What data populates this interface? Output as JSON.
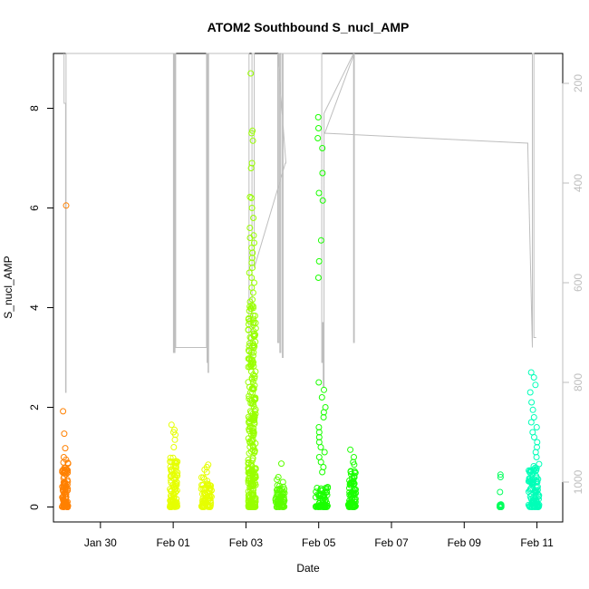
{
  "chart_data": {
    "type": "scatter",
    "title": "ATOM2 Southbound S_nucl_AMP",
    "xlabel": "Date",
    "ylabel": "S_nucl_AMP",
    "x_axis": {
      "kind": "date",
      "range": [
        "2015-01-28T17:00",
        "2015-02-11T17:00"
      ],
      "ticks": [
        {
          "label": "Jan 30",
          "date": "2015-01-30"
        },
        {
          "label": "Feb 01",
          "date": "2015-02-01"
        },
        {
          "label": "Feb 03",
          "date": "2015-02-03"
        },
        {
          "label": "Feb 05",
          "date": "2015-02-05"
        },
        {
          "label": "Feb 07",
          "date": "2015-02-07"
        },
        {
          "label": "Feb 09",
          "date": "2015-02-09"
        },
        {
          "label": "Feb 11",
          "date": "2015-02-11"
        }
      ]
    },
    "y_axis": {
      "range": [
        -0.3,
        9.1
      ],
      "ticks": [
        {
          "label": "0",
          "value": 0
        },
        {
          "label": "2",
          "value": 2
        },
        {
          "label": "4",
          "value": 4
        },
        {
          "label": "6",
          "value": 6
        },
        {
          "label": "8",
          "value": 8
        }
      ]
    },
    "y2_axis": {
      "reversed": true,
      "color": "#bebebe",
      "range": [
        1080,
        140
      ],
      "ticks": [
        {
          "label": "200",
          "value": 200
        },
        {
          "label": "400",
          "value": 400
        },
        {
          "label": "600",
          "value": 600
        },
        {
          "label": "800",
          "value": 800
        },
        {
          "label": "1000",
          "value": 1000
        }
      ]
    },
    "grid": false,
    "legend": "none",
    "colors": {
      "orange": "#ff8000",
      "yellow": "#e6ff00",
      "chartreuse": "#99ff00",
      "lime": "#5cff00",
      "green": "#1aff00",
      "spring": "#00ff5c",
      "aqua": "#00ffb8",
      "line": "#bebebe"
    },
    "clusters": [
      {
        "date": "2015-01-29T00:40",
        "width_h": 4,
        "color": "orange",
        "bulk_max": 0.9,
        "outliers": [
          6.05,
          1.92,
          1.47,
          1.18,
          1.0,
          0.95
        ]
      },
      {
        "date": "2015-02-01T00:20",
        "width_h": 5,
        "color": "yellow",
        "bulk_max": 1.0,
        "outliers": [
          1.65,
          1.55,
          1.5,
          1.45,
          1.35,
          1.2
        ]
      },
      {
        "date": "2015-02-01T22:00",
        "width_h": 7,
        "color": "yellow",
        "bulk_max": 0.6,
        "outliers": [
          0.85,
          0.8,
          0.75,
          0.7
        ]
      },
      {
        "date": "2015-02-03T04:00",
        "width_h": 5,
        "color": "chartreuse",
        "bulk_max": 4.2,
        "outliers": [
          8.7,
          7.55,
          7.5,
          7.35,
          6.9,
          6.8,
          6.22,
          6.2,
          6.0,
          5.8,
          5.6,
          5.45,
          5.4,
          5.3,
          5.2,
          5.1,
          5.0,
          4.9,
          4.8,
          4.7,
          4.6,
          4.5,
          4.4,
          4.3
        ]
      },
      {
        "date": "2015-02-03T22:30",
        "width_h": 6,
        "color": "lime",
        "bulk_max": 0.45,
        "outliers": [
          0.87,
          0.6,
          0.55,
          0.5
        ]
      },
      {
        "date": "2015-02-05T02:00",
        "width_h": 8,
        "color": "green",
        "bulk_max": 0.4,
        "outliers": [
          7.82,
          7.6,
          7.4,
          7.2,
          6.7,
          6.3,
          6.15,
          5.35,
          4.93,
          4.6,
          2.5,
          2.35,
          2.2,
          2.0,
          1.9,
          1.8,
          1.6,
          1.5,
          1.4,
          1.3,
          1.2,
          1.1,
          1.0,
          0.9,
          0.8,
          0.7
        ]
      },
      {
        "date": "2015-02-05T22:00",
        "width_h": 5,
        "color": "green",
        "bulk_max": 0.75,
        "outliers": [
          1.15,
          1.0,
          0.9,
          0.85
        ]
      },
      {
        "date": "2015-02-10T00:00",
        "width_h": 1,
        "color": "spring",
        "bulk_max": 0.05,
        "outliers": [
          0.65,
          0.6,
          0.3
        ]
      },
      {
        "date": "2015-02-10T22:00",
        "width_h": 7,
        "color": "aqua",
        "bulk_max": 0.9,
        "outliers": [
          2.7,
          2.6,
          2.45,
          2.3,
          2.1,
          1.95,
          1.8,
          1.7,
          1.6,
          1.5,
          1.4,
          1.3,
          1.2,
          1.1,
          1.0
        ]
      }
    ],
    "secondary_series": {
      "name": "",
      "axis": "right",
      "color": "line",
      "points": [
        [
          "2015-01-29T00:00",
          140
        ],
        [
          "2015-01-29T00:00",
          240
        ],
        [
          "2015-01-29T01:00",
          240
        ],
        [
          "2015-01-29T01:00",
          820
        ],
        [
          "2015-01-29T01:20",
          820
        ],
        [
          "2015-01-29T01:20",
          140
        ],
        [
          "2015-02-01T00:10",
          140
        ],
        [
          "2015-02-01T00:10",
          740
        ],
        [
          "2015-02-01T00:30",
          740
        ],
        [
          "2015-02-01T00:30",
          140
        ],
        [
          "2015-02-01T00:40",
          140
        ],
        [
          "2015-02-01T00:40",
          740
        ],
        [
          "2015-02-01T01:10",
          740
        ],
        [
          "2015-02-01T01:10",
          140
        ],
        [
          "2015-02-01T01:20",
          140
        ],
        [
          "2015-02-01T01:20",
          500
        ],
        [
          "2015-02-01T01:30",
          500
        ],
        [
          "2015-02-01T01:30",
          140
        ],
        [
          "2015-02-01T01:40",
          140
        ],
        [
          "2015-02-01T01:40",
          730
        ],
        [
          "2015-02-01T22:00",
          730
        ],
        [
          "2015-02-01T22:00",
          140
        ],
        [
          "2015-02-01T22:20",
          140
        ],
        [
          "2015-02-01T22:20",
          760
        ],
        [
          "2015-02-01T22:40",
          760
        ],
        [
          "2015-02-01T22:40",
          140
        ],
        [
          "2015-02-01T23:00",
          140
        ],
        [
          "2015-02-01T23:00",
          780
        ],
        [
          "2015-02-01T23:20",
          780
        ],
        [
          "2015-02-01T23:20",
          140
        ],
        [
          "2015-02-03T02:00",
          140
        ],
        [
          "2015-02-03T02:00",
          760
        ],
        [
          "2015-02-03T04:00",
          760
        ],
        [
          "2015-02-03T04:00",
          140
        ],
        [
          "2015-02-03T05:30",
          140
        ],
        [
          "2015-02-03T05:30",
          570
        ],
        [
          "2015-02-04T02:00",
          360
        ],
        [
          "2015-02-04T02:20",
          360
        ],
        [
          "2015-02-03T21:00",
          140
        ],
        [
          "2015-02-03T21:00",
          720
        ],
        [
          "2015-02-03T21:40",
          720
        ],
        [
          "2015-02-03T21:40",
          140
        ],
        [
          "2015-02-03T22:20",
          140
        ],
        [
          "2015-02-03T22:20",
          740
        ],
        [
          "2015-02-03T23:00",
          740
        ],
        [
          "2015-02-03T23:00",
          140
        ],
        [
          "2015-02-04T00:00",
          140
        ],
        [
          "2015-02-04T00:00",
          750
        ],
        [
          "2015-02-04T00:30",
          750
        ],
        [
          "2015-02-04T00:30",
          140
        ],
        [
          "2015-02-05T02:00",
          140
        ],
        [
          "2015-02-05T02:00",
          760
        ],
        [
          "2015-02-05T02:30",
          760
        ],
        [
          "2015-02-05T02:30",
          680
        ],
        [
          "2015-02-05T03:00",
          680
        ],
        [
          "2015-02-05T03:00",
          810
        ],
        [
          "2015-02-05T03:30",
          810
        ],
        [
          "2015-02-05T03:30",
          260
        ],
        [
          "2015-02-05T23:00",
          140
        ],
        [
          "2015-02-05T23:00",
          720
        ],
        [
          "2015-02-05T23:30",
          720
        ],
        [
          "2015-02-05T23:30",
          140
        ],
        [
          "2015-02-05T04:00",
          300
        ],
        [
          "2015-02-10T18:00",
          320
        ],
        [
          "2015-02-10T18:00",
          330
        ],
        [
          "2015-02-10T21:00",
          730
        ],
        [
          "2015-02-10T21:00",
          140
        ],
        [
          "2015-02-10T22:00",
          140
        ],
        [
          "2015-02-10T22:00",
          710
        ],
        [
          "2015-02-10T23:30",
          710
        ]
      ],
      "segments_note_free": true
    }
  }
}
